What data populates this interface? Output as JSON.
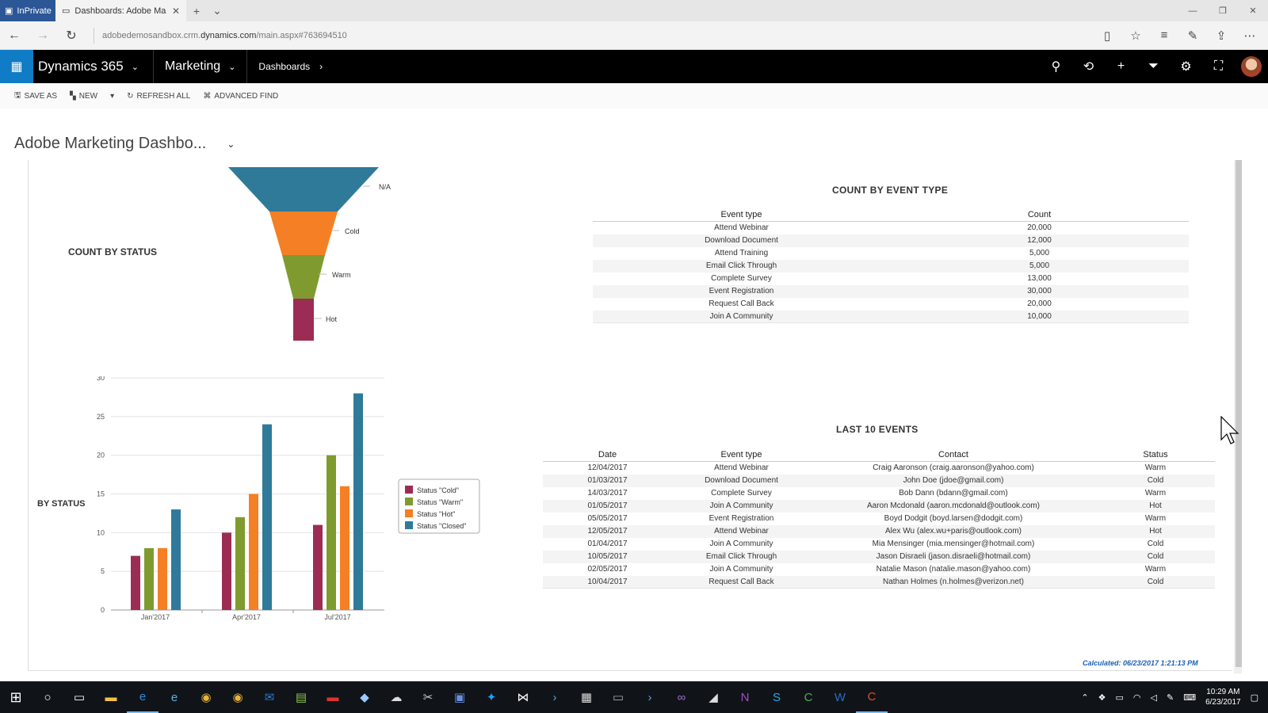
{
  "browser": {
    "inprivate_label": "InPrivate",
    "tab_title": "Dashboards: Adobe Ma",
    "url_prefix": "adobedemosandbox.crm.",
    "url_domain": "dynamics.com",
    "url_suffix": "/main.aspx#763694510"
  },
  "app": {
    "name": "Dynamics 365",
    "area": "Marketing",
    "breadcrumb": "Dashboards"
  },
  "toolbar": {
    "save_as": "SAVE AS",
    "new": "NEW",
    "refresh_all": "REFRESH ALL",
    "advanced_find": "ADVANCED FIND"
  },
  "dashboard": {
    "title": "Adobe Marketing Dashbo..."
  },
  "count_by_status": {
    "title": "COUNT BY STATUS",
    "labels": [
      "N/A",
      "Cold",
      "Warm",
      "Hot"
    ],
    "colors": [
      "#2f7a99",
      "#f57f24",
      "#7f9b2f",
      "#9b2d55"
    ]
  },
  "by_status": {
    "title": "BY STATUS"
  },
  "count_by_event_type": {
    "title": "COUNT BY EVENT TYPE",
    "columns": [
      "Event type",
      "Count"
    ],
    "rows": [
      [
        "Attend Webinar",
        "20,000"
      ],
      [
        "Download Document",
        "12,000"
      ],
      [
        "Attend Training",
        "5,000"
      ],
      [
        "Email Click Through",
        "5,000"
      ],
      [
        "Complete Survey",
        "13,000"
      ],
      [
        "Event Registration",
        "30,000"
      ],
      [
        "Request Call Back",
        "20,000"
      ],
      [
        "Join A Community",
        "10,000"
      ]
    ]
  },
  "last_events": {
    "title": "LAST 10 EVENTS",
    "columns": [
      "Date",
      "Event type",
      "Contact",
      "Status"
    ],
    "rows": [
      [
        "12/04/2017",
        "Attend Webinar",
        "Craig Aaronson (craig.aaronson@yahoo.com)",
        "Warm"
      ],
      [
        "01/03/2017",
        "Download Document",
        "John Doe (jdoe@gmail.com)",
        "Cold"
      ],
      [
        "14/03/2017",
        "Complete Survey",
        "Bob Dann (bdann@gmail.com)",
        "Warm"
      ],
      [
        "01/05/2017",
        "Join A Community",
        "Aaron Mcdonald (aaron.mcdonald@outlook.com)",
        "Hot"
      ],
      [
        "05/05/2017",
        "Event Registration",
        "Boyd Dodgit (boyd.larsen@dodgit.com)",
        "Warm"
      ],
      [
        "12/05/2017",
        "Attend Webinar",
        "Alex Wu (alex.wu+paris@outlook.com)",
        "Hot"
      ],
      [
        "01/04/2017",
        "Join A Community",
        "Mia Mensinger (mia.mensinger@hotmail.com)",
        "Cold"
      ],
      [
        "10/05/2017",
        "Email Click Through",
        "Jason Disraeli (jason.disraeli@hotmail.com)",
        "Cold"
      ],
      [
        "02/05/2017",
        "Join A Community",
        "Natalie Mason (natalie.mason@yahoo.com)",
        "Warm"
      ],
      [
        "10/04/2017",
        "Request Call Back",
        "Nathan Holmes (n.holmes@verizon.net)",
        "Cold"
      ]
    ]
  },
  "calculated": "Calculated: 06/23/2017 1:21:13 PM",
  "taskbar": {
    "time": "10:29 AM",
    "date": "6/23/2017"
  },
  "chart_data": [
    {
      "type": "funnel",
      "categories": [
        "N/A",
        "Cold",
        "Warm",
        "Hot"
      ]
    },
    {
      "type": "bar",
      "categories": [
        "Jan'2017",
        "Apr'2017",
        "Jul'2017"
      ],
      "series": [
        {
          "name": "Status \"Cold\"",
          "values": [
            7,
            10,
            11
          ],
          "color": "#9b2d55"
        },
        {
          "name": "Status \"Warm\"",
          "values": [
            8,
            12,
            20
          ],
          "color": "#7f9b2f"
        },
        {
          "name": "Status \"Hot\"",
          "values": [
            8,
            15,
            16
          ],
          "color": "#f57f24"
        },
        {
          "name": "Status \"Closed\"",
          "values": [
            13,
            24,
            28
          ],
          "color": "#2f7a99"
        }
      ],
      "yticks": [
        "0",
        "5",
        "10",
        "15",
        "20",
        "25",
        "30"
      ],
      "ylim": [
        0,
        30
      ],
      "grid": true,
      "legend": "right"
    }
  ]
}
